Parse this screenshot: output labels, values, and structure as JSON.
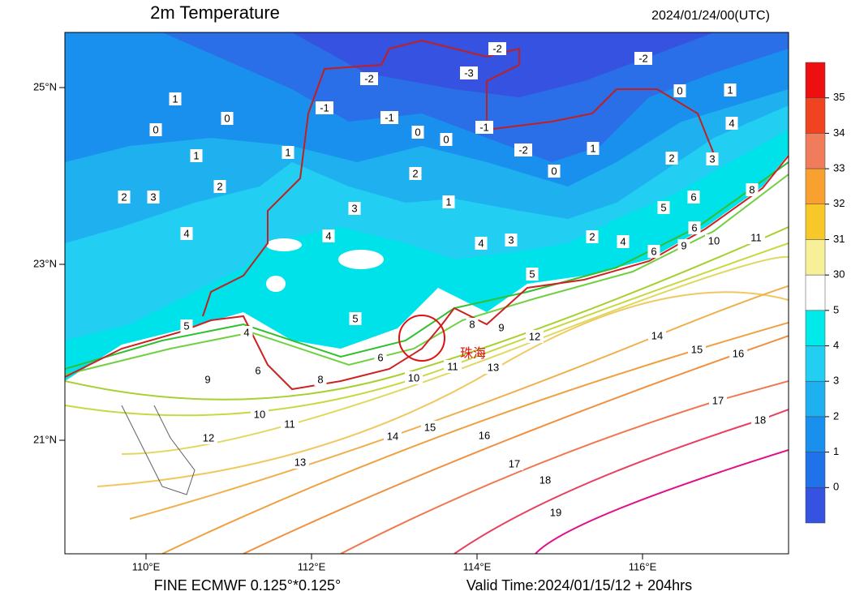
{
  "header": {
    "title": "2m Temperature",
    "datetime": "2024/01/24/00(UTC)"
  },
  "map": {
    "lon_labels": [
      "110°E",
      "112°E",
      "114°E",
      "116°E"
    ],
    "lat_labels": [
      "25°N",
      "23°N",
      "21°N"
    ],
    "place_label": "珠海",
    "contour_labels": [
      "-2",
      "-3",
      "-2",
      "-2",
      "-1",
      "-1",
      "0",
      "0",
      "-1",
      "-2",
      "1",
      "0",
      "0",
      "1",
      "1",
      "0",
      "1",
      "0",
      "1",
      "4",
      "2",
      "3",
      "2",
      "3",
      "2",
      "2",
      "1",
      "3",
      "4",
      "4",
      "4",
      "3",
      "2",
      "4",
      "5",
      "6",
      "8",
      "10",
      "11",
      "5",
      "4",
      "5",
      "6",
      "6",
      "8",
      "9",
      "8",
      "9",
      "10",
      "11",
      "13",
      "12",
      "14",
      "15",
      "16",
      "17",
      "18",
      "10",
      "11",
      "12",
      "13",
      "14",
      "15",
      "16",
      "17",
      "18",
      "19",
      "5",
      "6",
      "9",
      "6"
    ]
  },
  "colorbar": {
    "labels": [
      "35",
      "34",
      "33",
      "32",
      "31",
      "30",
      "5",
      "4",
      "3",
      "2",
      "1",
      "0"
    ],
    "colors": [
      "#ee1010",
      "#f04420",
      "#f07c5c",
      "#f8a030",
      "#f8c828",
      "#f8f098",
      "#ffffff",
      "#00eaea",
      "#22cff2",
      "#1fb0f0",
      "#1a90ee",
      "#2072ea",
      "#3552e0"
    ]
  },
  "footer": {
    "source": "FINE ECMWF 0.125°*0.125°",
    "valid_time": "Valid Time:2024/01/15/12 + 204hrs"
  }
}
